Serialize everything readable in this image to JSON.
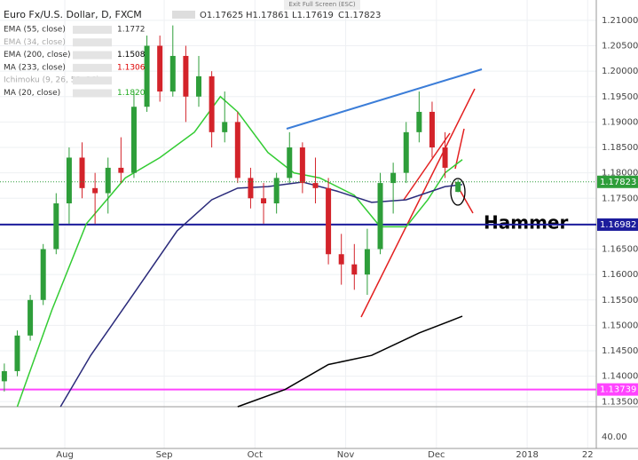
{
  "screen": {
    "exit_button": "Exit Full Screen (ESC)",
    "lower_panel_label": "40.00",
    "annotation": "Hammer"
  },
  "legend": {
    "symbol": "Euro Fx/U.S. Dollar, D, FXCM",
    "ohlc": [
      "O1.17625",
      "H1.17861",
      "L1.17619",
      "C1.17823"
    ],
    "indicators": [
      {
        "name": "EMA (55, close)",
        "value": "1.1772",
        "color": "#333"
      },
      {
        "name": "EMA (34, close)",
        "color": "#aaa"
      },
      {
        "name": "EMA (200, close)",
        "value": "1.1508",
        "color": "#000"
      },
      {
        "name": "MA (233, close)",
        "value": "1.1306",
        "color": "#d00"
      },
      {
        "name": "Ichimoku (9, 26, 52, 26)",
        "color": "#aaa"
      },
      {
        "name": "MA (20, close)",
        "value": "1.1820",
        "color": "#2a2"
      }
    ]
  },
  "chart_data": {
    "type": "candlestick",
    "up_color": "#2e9e3a",
    "down_color": "#d3232a",
    "xlim": [
      0,
      138
    ],
    "ylim": [
      1.134,
      1.214
    ],
    "xticks": [
      {
        "value": 15,
        "label": "Aug"
      },
      {
        "value": 38,
        "label": "Sep"
      },
      {
        "value": 59,
        "label": "Oct"
      },
      {
        "value": 80,
        "label": "Nov"
      },
      {
        "value": 101,
        "label": "Dec"
      },
      {
        "value": 122,
        "label": "2018"
      },
      {
        "value": 136,
        "label": "22"
      }
    ],
    "yticks": [
      {
        "value": 1.21,
        "label": "1.21000"
      },
      {
        "value": 1.205,
        "label": "1.20500"
      },
      {
        "value": 1.2,
        "label": "1.20000"
      },
      {
        "value": 1.195,
        "label": "1.19500"
      },
      {
        "value": 1.19,
        "label": "1.19000"
      },
      {
        "value": 1.185,
        "label": "1.18500"
      },
      {
        "value": 1.18,
        "label": "1.18000"
      },
      {
        "value": 1.175,
        "label": "1.17500"
      },
      {
        "value": 1.17,
        "label": "1.17000"
      },
      {
        "value": 1.165,
        "label": "1.16500"
      },
      {
        "value": 1.16,
        "label": "1.16000"
      },
      {
        "value": 1.155,
        "label": "1.15500"
      },
      {
        "value": 1.15,
        "label": "1.15000"
      },
      {
        "value": 1.145,
        "label": "1.14500"
      },
      {
        "value": 1.14,
        "label": "1.14000"
      },
      {
        "value": 1.135,
        "label": "1.13500"
      }
    ],
    "x": [
      1,
      4,
      7,
      10,
      13,
      16,
      19,
      22,
      25,
      28,
      31,
      34,
      37,
      40,
      43,
      46,
      49,
      52,
      55,
      58,
      61,
      64,
      67,
      70,
      73,
      76,
      79,
      82,
      85,
      88,
      91,
      94,
      97,
      100,
      103,
      106
    ],
    "open": [
      1.139,
      1.141,
      1.148,
      1.155,
      1.165,
      1.174,
      1.183,
      1.177,
      1.176,
      1.181,
      1.18,
      1.193,
      1.205,
      1.196,
      1.203,
      1.195,
      1.199,
      1.188,
      1.19,
      1.179,
      1.175,
      1.174,
      1.179,
      1.185,
      1.178,
      1.177,
      1.164,
      1.162,
      1.16,
      1.165,
      1.178,
      1.18,
      1.188,
      1.192,
      1.185,
      1.17625
    ],
    "high": [
      1.1425,
      1.149,
      1.156,
      1.166,
      1.176,
      1.185,
      1.186,
      1.18,
      1.183,
      1.187,
      1.196,
      1.207,
      1.207,
      1.209,
      1.205,
      1.203,
      1.2,
      1.196,
      1.192,
      1.181,
      1.178,
      1.18,
      1.188,
      1.186,
      1.183,
      1.179,
      1.168,
      1.166,
      1.169,
      1.18,
      1.182,
      1.19,
      1.196,
      1.194,
      1.188,
      1.17861
    ],
    "low": [
      1.137,
      1.14,
      1.147,
      1.154,
      1.164,
      1.17,
      1.175,
      1.17,
      1.172,
      1.178,
      1.179,
      1.192,
      1.194,
      1.195,
      1.19,
      1.193,
      1.185,
      1.186,
      1.178,
      1.173,
      1.17,
      1.172,
      1.178,
      1.176,
      1.174,
      1.162,
      1.158,
      1.157,
      1.156,
      1.164,
      1.172,
      1.178,
      1.186,
      1.183,
      1.179,
      1.17619
    ],
    "close": [
      1.141,
      1.148,
      1.155,
      1.165,
      1.174,
      1.183,
      1.177,
      1.176,
      1.181,
      1.18,
      1.193,
      1.205,
      1.196,
      1.203,
      1.195,
      1.199,
      1.188,
      1.19,
      1.179,
      1.175,
      1.174,
      1.179,
      1.185,
      1.178,
      1.177,
      1.164,
      1.162,
      1.16,
      1.165,
      1.178,
      1.18,
      1.188,
      1.192,
      1.185,
      1.181,
      1.17823
    ],
    "lines": [
      {
        "color": "#33cc33",
        "x": [
          4,
          12,
          20,
          29,
          37,
          45,
          51,
          55,
          62,
          68,
          74,
          82,
          88,
          94,
          99,
          103,
          107
        ],
        "values": [
          1.134,
          1.153,
          1.17,
          1.179,
          1.183,
          1.188,
          1.195,
          1.192,
          1.184,
          1.18,
          1.179,
          1.1756,
          1.1694,
          1.1694,
          1.1747,
          1.18,
          1.1826
        ]
      },
      {
        "color": "#2a2a7a",
        "x": [
          14,
          21,
          31,
          41,
          49,
          55,
          62,
          70,
          78,
          86,
          94,
          103,
          107
        ],
        "values": [
          1.134,
          1.1441,
          1.1563,
          1.1686,
          1.1747,
          1.177,
          1.1773,
          1.1782,
          1.1764,
          1.1742,
          1.1747,
          1.1773,
          1.1777
        ]
      },
      {
        "color": "#000000",
        "x": [
          55,
          66,
          76,
          86,
          97,
          107
        ],
        "values": [
          1.134,
          1.1374,
          1.1423,
          1.1441,
          1.1485,
          1.1518
        ]
      }
    ],
    "hlines": [
      {
        "value": 1.16982,
        "color": "#1c1c9c"
      },
      {
        "value": 1.13739,
        "color": "#ff44ff"
      }
    ],
    "last_price": {
      "value": 1.17823,
      "color": "#2e9e3a"
    }
  }
}
